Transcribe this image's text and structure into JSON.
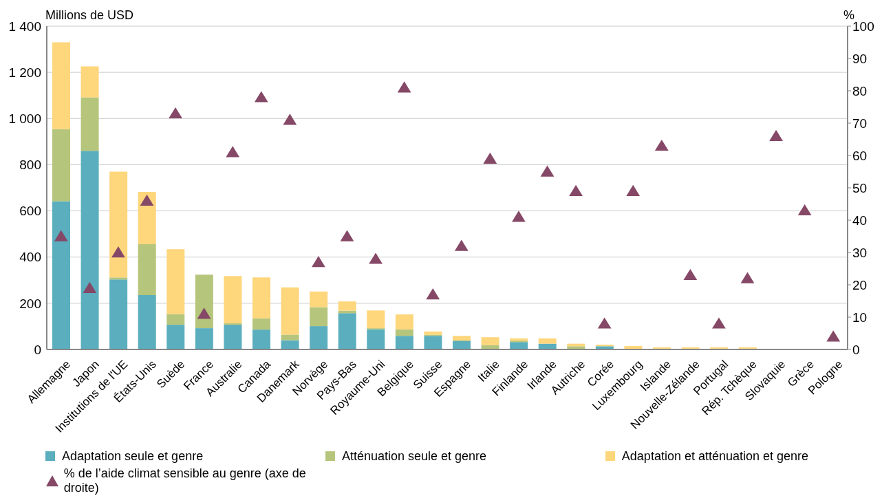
{
  "chart_data": {
    "type": "bar",
    "stacked": true,
    "ylabel": "Millions de USD",
    "y2label": "%",
    "categories": [
      "Allemagne",
      "Japon",
      "Institutions de l'UE",
      "États-Unis",
      "Suède",
      "France",
      "Australie",
      "Canada",
      "Danemark",
      "Norvège",
      "Pays-Bas",
      "Royaume-Uni",
      "Belgique",
      "Suisse",
      "Espagne",
      "Italie",
      "Finlande",
      "Irlande",
      "Autriche",
      "Corée",
      "Luxembourg",
      "Islande",
      "Nouvelle-Zélande",
      "Portugal",
      "Rép. Tchèque",
      "Slovaquie",
      "Grèce",
      "Pologne"
    ],
    "series": [
      {
        "name": "Adaptation seule et genre",
        "color": "#5aaebe",
        "values": [
          642,
          860,
          303,
          235,
          107,
          92,
          107,
          86,
          40,
          101,
          157,
          87,
          59,
          59,
          36,
          0,
          32,
          25,
          3,
          14,
          0,
          0,
          0,
          0,
          0,
          0,
          0,
          0
        ]
      },
      {
        "name": "Atténuation seule et genre",
        "color": "#b5c57b",
        "values": [
          312,
          232,
          9,
          221,
          46,
          232,
          6,
          49,
          24,
          82,
          11,
          5,
          28,
          5,
          5,
          19,
          6,
          0,
          11,
          0,
          0,
          0,
          0,
          0,
          0,
          0,
          0,
          0
        ]
      },
      {
        "name": "Adaptation et atténuation et genre",
        "color": "#fed67c",
        "values": [
          376,
          134,
          458,
          226,
          281,
          0,
          205,
          177,
          205,
          68,
          40,
          77,
          65,
          14,
          18,
          34,
          10,
          23,
          11,
          7,
          15,
          9,
          9,
          9,
          9,
          0,
          0,
          0
        ]
      },
      {
        "name": "% de l’aide climat sensible au genre (axe de droite)",
        "type": "scatter",
        "axis": "y2",
        "marker": "triangle",
        "color": "#854867",
        "values": [
          35,
          19,
          30,
          46,
          73,
          11,
          61,
          78,
          71,
          27,
          35,
          28,
          81,
          17,
          32,
          59,
          41,
          55,
          49,
          8,
          49,
          63,
          23,
          8,
          22,
          66,
          43,
          4
        ]
      }
    ],
    "ylim": [
      0,
      1400
    ],
    "yticks": [
      0,
      200,
      400,
      600,
      800,
      {
        "value": 1000,
        "label": "1 000"
      },
      {
        "value": 1200,
        "label": "1 200"
      },
      {
        "value": 1400,
        "label": "1 400"
      }
    ],
    "y2lim": [
      0,
      100
    ],
    "y2ticks": [
      0,
      10,
      20,
      30,
      40,
      50,
      60,
      70,
      80,
      90,
      100
    ],
    "grid": "y",
    "legend": "bottom"
  }
}
